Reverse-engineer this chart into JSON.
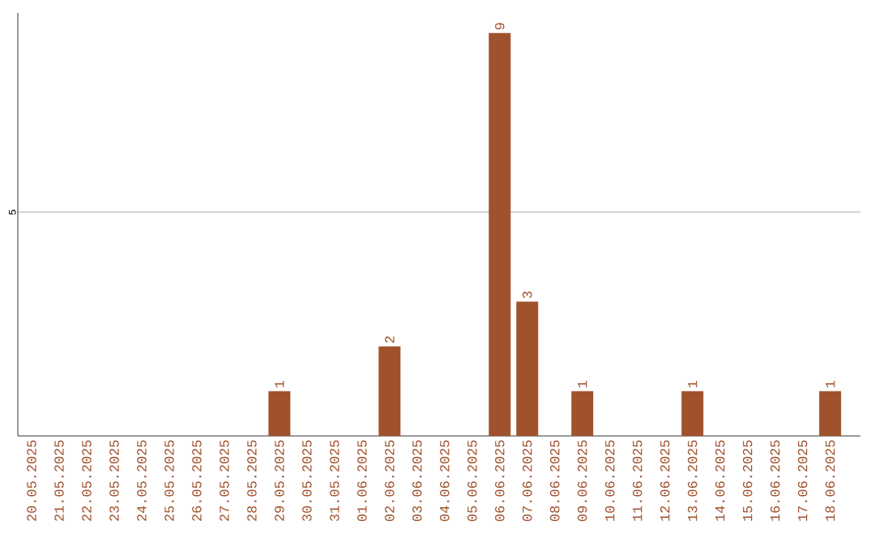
{
  "chart_data": {
    "type": "bar",
    "categories": [
      "20.05.2025",
      "21.05.2025",
      "22.05.2025",
      "23.05.2025",
      "24.05.2025",
      "25.05.2025",
      "26.05.2025",
      "27.05.2025",
      "28.05.2025",
      "29.05.2025",
      "30.05.2025",
      "31.05.2025",
      "01.06.2025",
      "02.06.2025",
      "03.06.2025",
      "04.06.2025",
      "05.06.2025",
      "06.06.2025",
      "07.06.2025",
      "08.06.2025",
      "09.06.2025",
      "10.06.2025",
      "11.06.2025",
      "12.06.2025",
      "13.06.2025",
      "14.06.2025",
      "15.06.2025",
      "16.06.2025",
      "17.06.2025",
      "18.06.2025"
    ],
    "values": [
      0,
      0,
      0,
      0,
      0,
      0,
      0,
      0,
      0,
      1,
      0,
      0,
      0,
      2,
      0,
      0,
      0,
      9,
      3,
      0,
      1,
      0,
      0,
      0,
      1,
      0,
      0,
      0,
      0,
      1
    ],
    "value_labels": [
      null,
      null,
      null,
      null,
      null,
      null,
      null,
      null,
      null,
      "1",
      null,
      null,
      null,
      "2",
      null,
      null,
      null,
      "9",
      "3",
      null,
      "1",
      null,
      null,
      null,
      "1",
      null,
      null,
      null,
      null,
      "1"
    ],
    "color": "#a0522d",
    "ylim": [
      0,
      9.45
    ],
    "yticks": [
      5
    ],
    "grid": "y"
  }
}
